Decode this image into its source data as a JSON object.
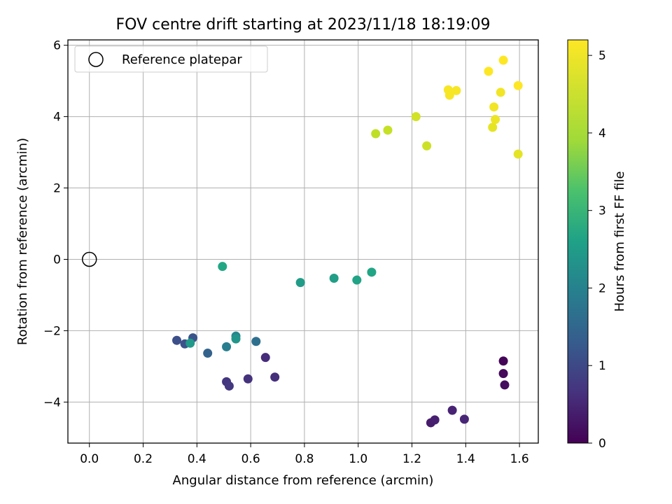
{
  "chart_data": {
    "type": "scatter",
    "title": "FOV centre drift starting at 2023/11/18 18:19:09",
    "xlabel": "Angular distance from reference (arcmin)",
    "ylabel": "Rotation from reference (arcmin)",
    "xlim": [
      -0.08,
      1.67
    ],
    "ylim": [
      -5.15,
      6.15
    ],
    "xticks": [
      0.0,
      0.2,
      0.4,
      0.6,
      0.8,
      1.0,
      1.2,
      1.4,
      1.6
    ],
    "xtick_labels": [
      "0.0",
      "0.2",
      "0.4",
      "0.6",
      "0.8",
      "1.0",
      "1.2",
      "1.4",
      "1.6"
    ],
    "yticks": [
      -4,
      -2,
      0,
      2,
      4,
      6
    ],
    "ytick_labels": [
      "−4",
      "−2",
      "0",
      "2",
      "4",
      "6"
    ],
    "grid": true,
    "legend": {
      "placement": "top-left",
      "entries": [
        {
          "label": "Reference platepar",
          "marker": "open-circle",
          "x": 0.0,
          "y": 0.0
        }
      ]
    },
    "colorbar": {
      "label": "Hours from first FF file",
      "range": [
        0,
        5.2
      ],
      "ticks": [
        0,
        1,
        2,
        3,
        4,
        5
      ],
      "tick_labels": [
        "0",
        "1",
        "2",
        "3",
        "4",
        "5"
      ],
      "colormap": "viridis"
    },
    "series": [
      {
        "points": [
          {
            "x": 1.54,
            "y": -2.85,
            "t": 0.05
          },
          {
            "x": 1.54,
            "y": -3.2,
            "t": 0.1
          },
          {
            "x": 1.545,
            "y": -3.52,
            "t": 0.15
          },
          {
            "x": 1.27,
            "y": -4.58,
            "t": 0.4
          },
          {
            "x": 1.285,
            "y": -4.5,
            "t": 0.45
          },
          {
            "x": 1.35,
            "y": -4.23,
            "t": 0.5
          },
          {
            "x": 1.395,
            "y": -4.48,
            "t": 0.55
          },
          {
            "x": 0.655,
            "y": -2.75,
            "t": 0.65
          },
          {
            "x": 0.69,
            "y": -3.3,
            "t": 0.7
          },
          {
            "x": 0.59,
            "y": -3.35,
            "t": 0.75
          },
          {
            "x": 0.51,
            "y": -3.43,
            "t": 0.8
          },
          {
            "x": 0.52,
            "y": -3.55,
            "t": 0.85
          },
          {
            "x": 0.325,
            "y": -2.27,
            "t": 1.25
          },
          {
            "x": 0.355,
            "y": -2.37,
            "t": 1.3
          },
          {
            "x": 0.385,
            "y": -2.2,
            "t": 1.35
          },
          {
            "x": 0.44,
            "y": -2.63,
            "t": 1.65
          },
          {
            "x": 0.62,
            "y": -2.3,
            "t": 1.9
          },
          {
            "x": 0.51,
            "y": -2.45,
            "t": 2.2
          },
          {
            "x": 0.545,
            "y": -2.15,
            "t": 2.4
          },
          {
            "x": 0.545,
            "y": -2.23,
            "t": 2.7
          },
          {
            "x": 0.375,
            "y": -2.35,
            "t": 2.8
          },
          {
            "x": 0.785,
            "y": -0.65,
            "t": 2.85
          },
          {
            "x": 0.91,
            "y": -0.53,
            "t": 2.9
          },
          {
            "x": 0.995,
            "y": -0.58,
            "t": 3.0
          },
          {
            "x": 1.05,
            "y": -0.36,
            "t": 3.05
          },
          {
            "x": 0.495,
            "y": -0.2,
            "t": 3.1
          },
          {
            "x": 1.065,
            "y": 3.52,
            "t": 4.7
          },
          {
            "x": 1.11,
            "y": 3.62,
            "t": 4.75
          },
          {
            "x": 1.255,
            "y": 3.18,
            "t": 4.8
          },
          {
            "x": 1.215,
            "y": 4.0,
            "t": 4.85
          },
          {
            "x": 1.5,
            "y": 3.7,
            "t": 5.0
          },
          {
            "x": 1.595,
            "y": 2.95,
            "t": 5.0
          },
          {
            "x": 1.51,
            "y": 3.92,
            "t": 5.05
          },
          {
            "x": 1.505,
            "y": 4.27,
            "t": 5.1
          },
          {
            "x": 1.53,
            "y": 4.68,
            "t": 5.1
          },
          {
            "x": 1.335,
            "y": 4.75,
            "t": 5.15
          },
          {
            "x": 1.34,
            "y": 4.6,
            "t": 5.15
          },
          {
            "x": 1.365,
            "y": 4.73,
            "t": 5.15
          },
          {
            "x": 1.485,
            "y": 5.27,
            "t": 5.2
          },
          {
            "x": 1.54,
            "y": 5.58,
            "t": 5.2
          },
          {
            "x": 1.595,
            "y": 4.87,
            "t": 5.2
          }
        ]
      }
    ]
  }
}
